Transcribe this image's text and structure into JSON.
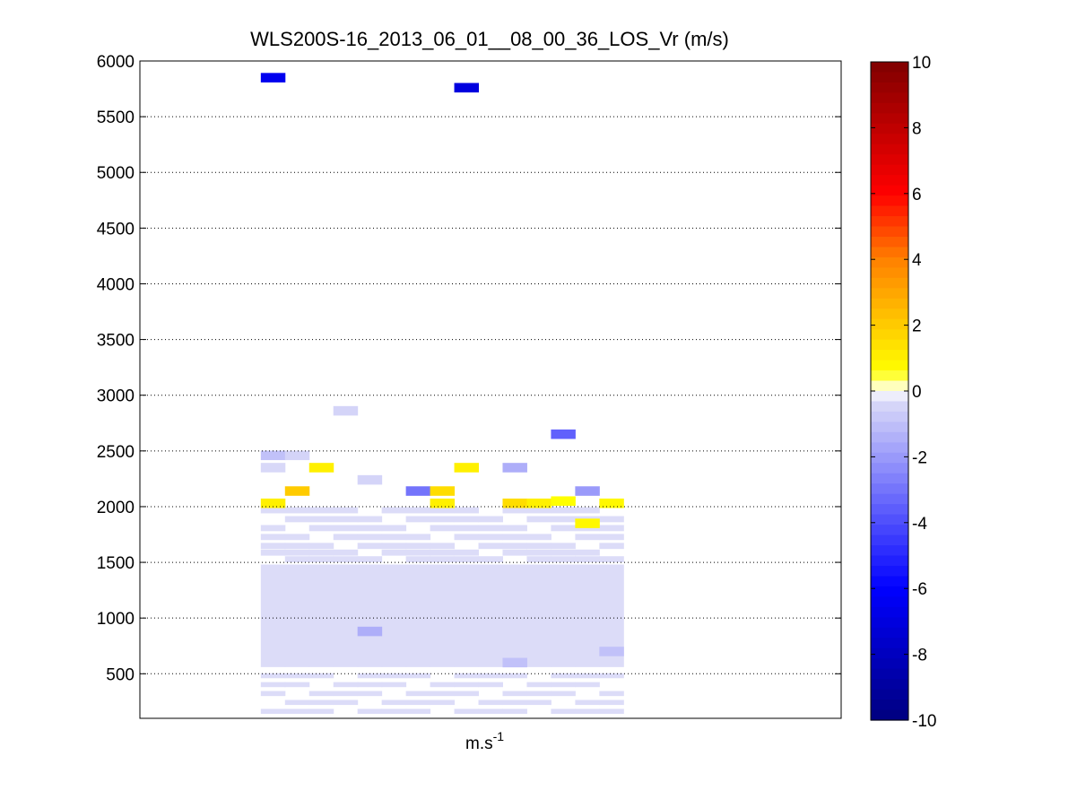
{
  "chart_data": {
    "type": "heatmap",
    "title": "WLS200S-16_2013_06_01__08_00_36_LOS_Vr (m/s)",
    "xlabel": "m.s",
    "xlabel_superscript": "-1",
    "ylabel": "",
    "ylim": [
      100,
      6000
    ],
    "yticks": [
      500,
      1000,
      1500,
      2000,
      2500,
      3000,
      3500,
      4000,
      4500,
      5000,
      5500,
      6000
    ],
    "grid": "horizontal-dotted",
    "colorbar": {
      "min": -10,
      "max": 10,
      "ticks": [
        10,
        8,
        6,
        4,
        2,
        0,
        -2,
        -4,
        -6,
        -8,
        -10
      ],
      "steps": 64,
      "colors": {
        "negative_end": "#00007f",
        "negative_mid": "#0000ff",
        "near_zero_negative": "#dcdcf8",
        "zero": "#ffffff",
        "near_zero_positive": "#ffff80",
        "positive_mid": "#ff8000",
        "positive_end": "#7f0000"
      }
    },
    "columns": 19,
    "cells": [
      {
        "col": 5,
        "alt": 5850,
        "value": -6.5
      },
      {
        "col": 13,
        "alt": 5760,
        "value": -7.0
      },
      {
        "col": 17,
        "alt": 2650,
        "value": -3.5
      },
      {
        "col": 8,
        "alt": 2860,
        "value": -0.5
      },
      {
        "col": 5,
        "alt": 2460,
        "value": -1.0
      },
      {
        "col": 6,
        "alt": 2460,
        "value": -0.5
      },
      {
        "col": 5,
        "alt": 2350,
        "value": -0.4
      },
      {
        "col": 7,
        "alt": 2350,
        "value": 1.0
      },
      {
        "col": 13,
        "alt": 2350,
        "value": 1.0
      },
      {
        "col": 15,
        "alt": 2350,
        "value": -1.5
      },
      {
        "col": 9,
        "alt": 2240,
        "value": -0.5
      },
      {
        "col": 6,
        "alt": 2140,
        "value": 2.0
      },
      {
        "col": 11,
        "alt": 2140,
        "value": -3.0
      },
      {
        "col": 12,
        "alt": 2140,
        "value": 1.5
      },
      {
        "col": 18,
        "alt": 2140,
        "value": -2.0
      },
      {
        "col": 5,
        "alt": 2030,
        "value": 1.0
      },
      {
        "col": 12,
        "alt": 2030,
        "value": 1.0
      },
      {
        "col": 15,
        "alt": 2030,
        "value": 1.5
      },
      {
        "col": 16,
        "alt": 2030,
        "value": 1.0
      },
      {
        "col": 17,
        "alt": 2050,
        "value": 0.6
      },
      {
        "col": 19,
        "alt": 2030,
        "value": 0.8
      },
      {
        "col": 18,
        "alt": 1850,
        "value": 0.8
      },
      {
        "col": 9,
        "alt": 880,
        "value": -1.5
      },
      {
        "col": 15,
        "alt": 600,
        "value": -1.0
      },
      {
        "col": 19,
        "alt": 700,
        "value": -1.0
      }
    ]
  }
}
